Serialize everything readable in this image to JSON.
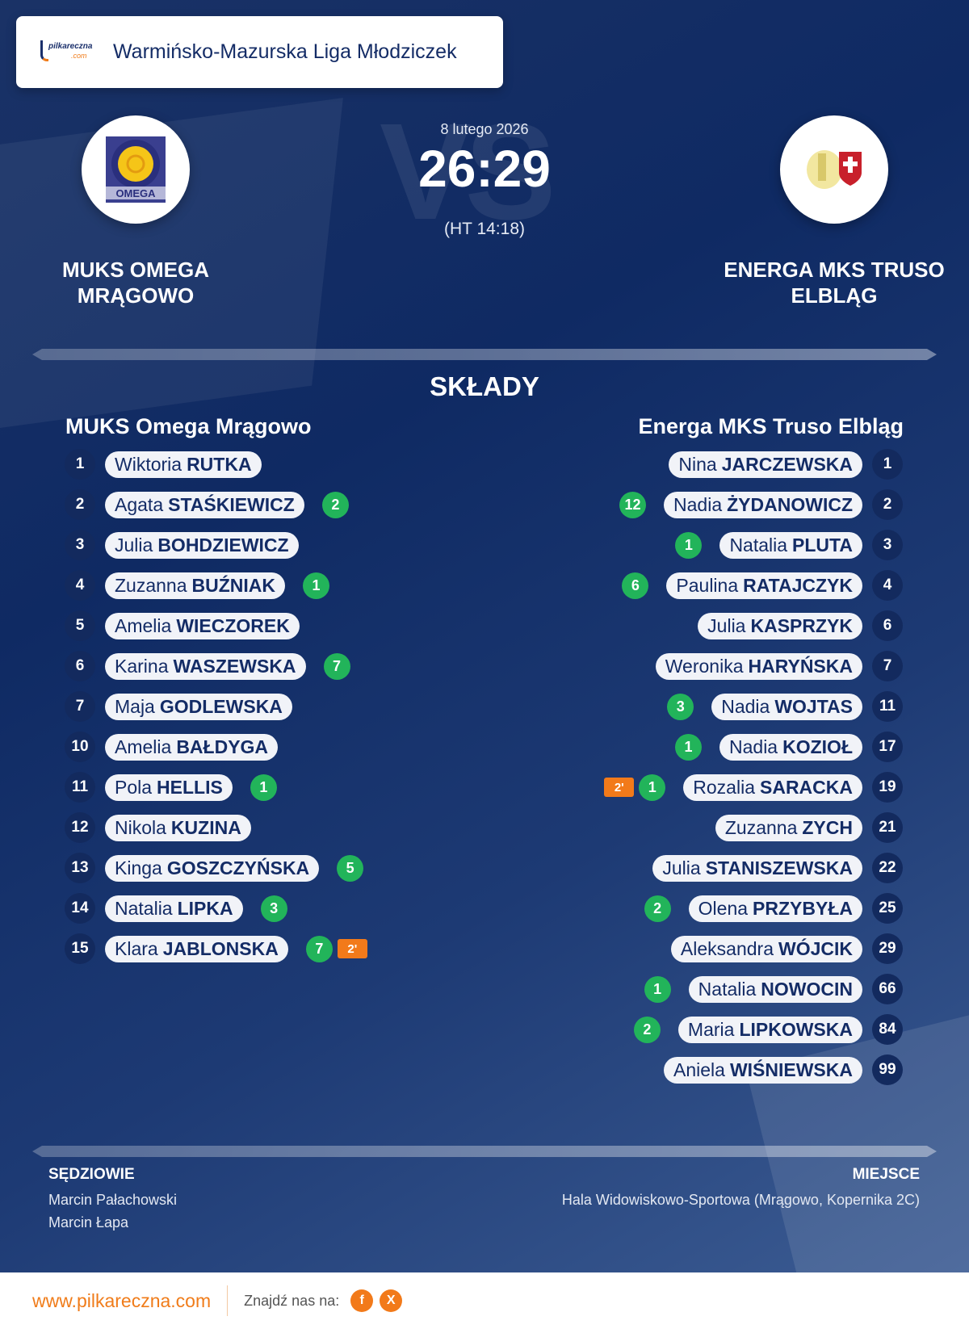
{
  "header": {
    "league": "Warmińsko-Mazurska Liga Młodziczek",
    "logo_text": "pilkareczna.com"
  },
  "match": {
    "date": "8 lutego 2026",
    "score": "26:29",
    "halftime": "(HT 14:18)",
    "vs": "VS"
  },
  "home": {
    "name_upper_1": "MUKS OMEGA",
    "name_upper_2": "MRĄGOWO",
    "name": "MUKS Omega Mrągowo",
    "crest_text": "OMEGA"
  },
  "away": {
    "name_upper_1": "ENERGA MKS TRUSO",
    "name_upper_2": "ELBLĄG",
    "name": "Energa MKS Truso Elbląg"
  },
  "section_title": "SKŁADY",
  "home_players": [
    {
      "num": "1",
      "first": "Wiktoria",
      "last": "RUTKA",
      "goals": "",
      "pen": ""
    },
    {
      "num": "2",
      "first": "Agata",
      "last": "STAŚKIEWICZ",
      "goals": "2",
      "pen": ""
    },
    {
      "num": "3",
      "first": "Julia",
      "last": "BOHDZIEWICZ",
      "goals": "",
      "pen": ""
    },
    {
      "num": "4",
      "first": "Zuzanna",
      "last": "BUŹNIAK",
      "goals": "1",
      "pen": ""
    },
    {
      "num": "5",
      "first": "Amelia",
      "last": "WIECZOREK",
      "goals": "",
      "pen": ""
    },
    {
      "num": "6",
      "first": "Karina",
      "last": "WASZEWSKA",
      "goals": "7",
      "pen": ""
    },
    {
      "num": "7",
      "first": "Maja",
      "last": "GODLEWSKA",
      "goals": "",
      "pen": ""
    },
    {
      "num": "10",
      "first": "Amelia",
      "last": "BAŁDYGA",
      "goals": "",
      "pen": ""
    },
    {
      "num": "11",
      "first": "Pola",
      "last": "HELLIS",
      "goals": "1",
      "pen": ""
    },
    {
      "num": "12",
      "first": "Nikola",
      "last": "KUZINA",
      "goals": "",
      "pen": ""
    },
    {
      "num": "13",
      "first": "Kinga",
      "last": "GOSZCZYŃSKA",
      "goals": "5",
      "pen": ""
    },
    {
      "num": "14",
      "first": "Natalia",
      "last": "LIPKA",
      "goals": "3",
      "pen": ""
    },
    {
      "num": "15",
      "first": "Klara",
      "last": "JABLONSKA",
      "goals": "7",
      "pen": "2'"
    }
  ],
  "away_players": [
    {
      "num": "1",
      "first": "Nina",
      "last": "JARCZEWSKA",
      "goals": "",
      "pen": ""
    },
    {
      "num": "2",
      "first": "Nadia",
      "last": "ŻYDANOWICZ",
      "goals": "12",
      "pen": ""
    },
    {
      "num": "3",
      "first": "Natalia",
      "last": "PLUTA",
      "goals": "1",
      "pen": ""
    },
    {
      "num": "4",
      "first": "Paulina",
      "last": "RATAJCZYK",
      "goals": "6",
      "pen": ""
    },
    {
      "num": "6",
      "first": "Julia",
      "last": "KASPRZYK",
      "goals": "",
      "pen": ""
    },
    {
      "num": "7",
      "first": "Weronika",
      "last": "HARYŃSKA",
      "goals": "",
      "pen": ""
    },
    {
      "num": "11",
      "first": "Nadia",
      "last": "WOJTAS",
      "goals": "3",
      "pen": ""
    },
    {
      "num": "17",
      "first": "Nadia",
      "last": "KOZIOŁ",
      "goals": "1",
      "pen": ""
    },
    {
      "num": "19",
      "first": "Rozalia",
      "last": "SARACKA",
      "goals": "1",
      "pen": "2'"
    },
    {
      "num": "21",
      "first": "Zuzanna",
      "last": "ZYCH",
      "goals": "",
      "pen": ""
    },
    {
      "num": "22",
      "first": "Julia",
      "last": "STANISZEWSKA",
      "goals": "",
      "pen": ""
    },
    {
      "num": "25",
      "first": "Olena",
      "last": "PRZYBYŁA",
      "goals": "2",
      "pen": ""
    },
    {
      "num": "29",
      "first": "Aleksandra",
      "last": "WÓJCIK",
      "goals": "",
      "pen": ""
    },
    {
      "num": "66",
      "first": "Natalia",
      "last": "NOWOCIN",
      "goals": "1",
      "pen": ""
    },
    {
      "num": "84",
      "first": "Maria",
      "last": "LIPKOWSKA",
      "goals": "2",
      "pen": ""
    },
    {
      "num": "99",
      "first": "Aniela",
      "last": "WIŚNIEWSKA",
      "goals": "",
      "pen": ""
    }
  ],
  "officials": {
    "title": "SĘDZIOWIE",
    "names": [
      "Marcin Pałachowski",
      "Marcin Łapa"
    ]
  },
  "venue": {
    "title": "MIEJSCE",
    "text": "Hala Widowiskowo-Sportowa (Mrągowo, Kopernika 2C)"
  },
  "footer": {
    "url": "www.pilkareczna.com",
    "find_us": "Znajdź nas na:",
    "social": [
      {
        "icon": "facebook-icon",
        "label": "f"
      },
      {
        "icon": "x-icon",
        "label": "X"
      }
    ]
  },
  "colors": {
    "goal": "#22b45a",
    "penalty": "#f27a1a",
    "navy": "#142c66",
    "accent": "#f07c1a"
  }
}
